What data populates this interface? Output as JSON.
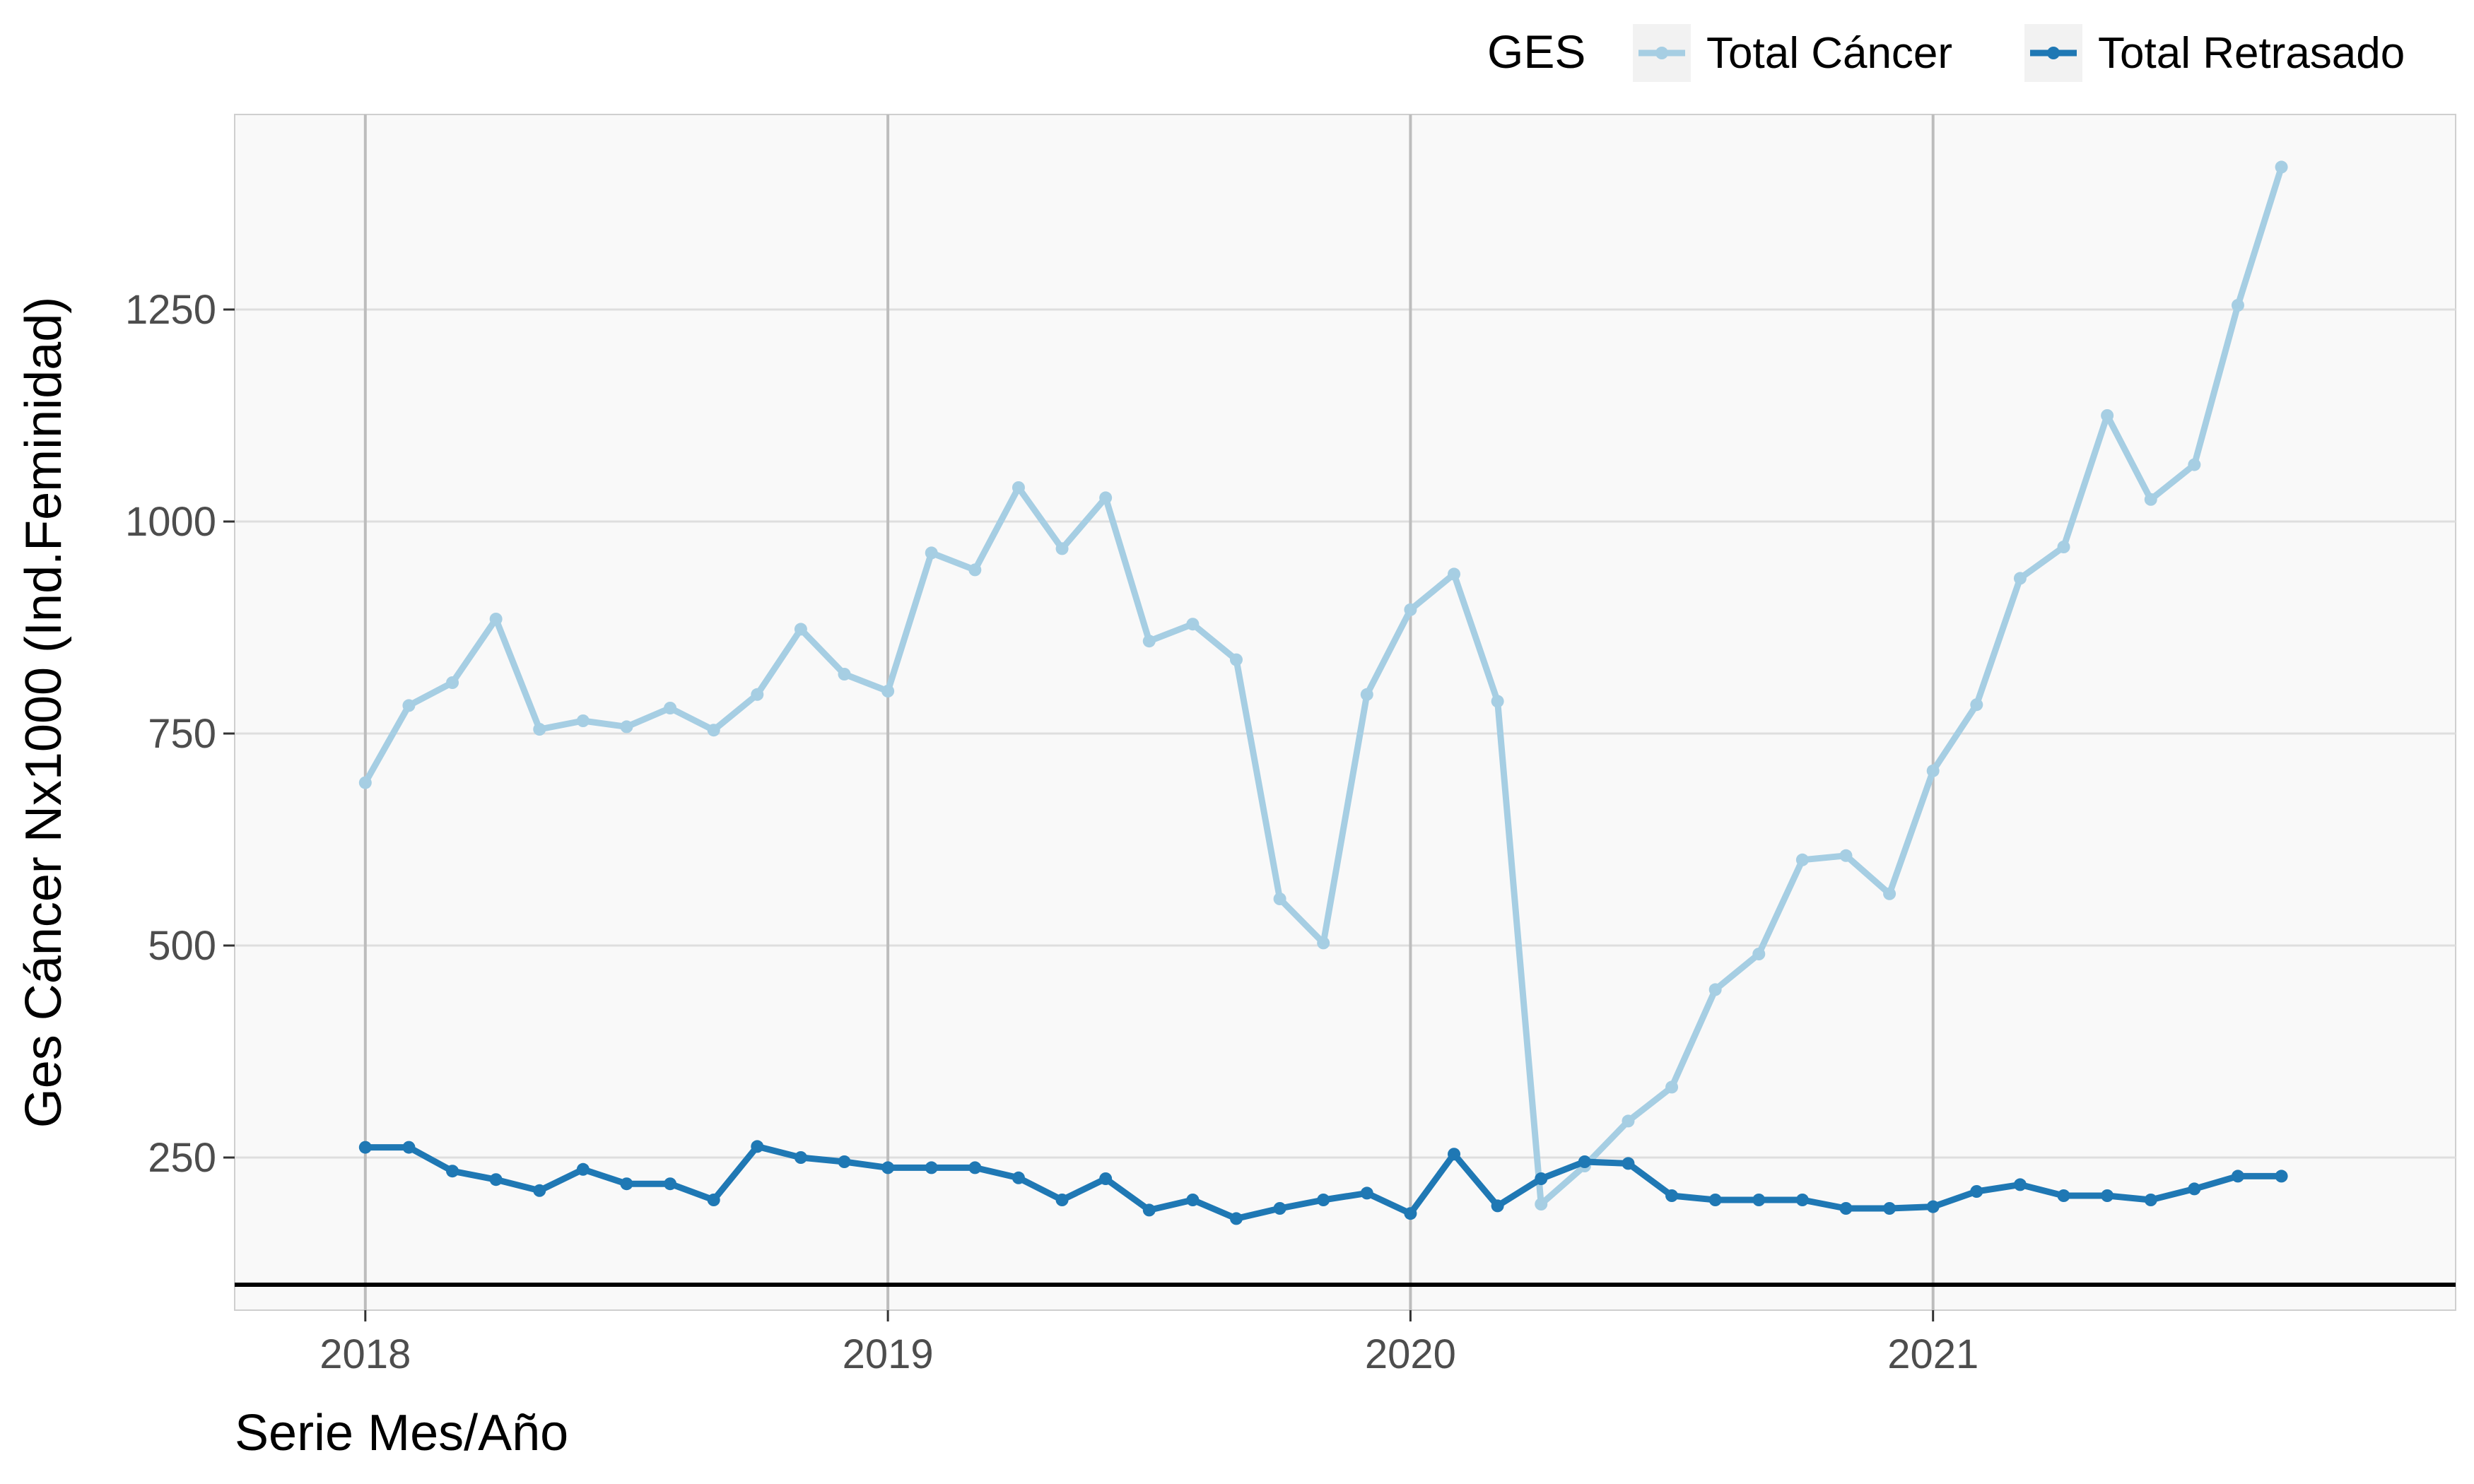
{
  "chart_data": {
    "type": "line",
    "xlabel": "Serie Mes/Año",
    "ylabel": "Ges Cáncer Nx1000 (Ind.Feminidad)",
    "x_ticks": [
      "2018",
      "2019",
      "2020",
      "2021"
    ],
    "y_ticks": [
      250,
      500,
      750,
      1000,
      1250
    ],
    "xlim": [
      "2017-10",
      "2022-01"
    ],
    "ylim": [
      70,
      1480
    ],
    "reference_line": 100,
    "grid": true,
    "legend": {
      "title": "GES",
      "position": "top-right"
    },
    "x": [
      "2018-01",
      "2018-02",
      "2018-03",
      "2018-04",
      "2018-05",
      "2018-06",
      "2018-07",
      "2018-08",
      "2018-09",
      "2018-10",
      "2018-11",
      "2018-12",
      "2019-01",
      "2019-02",
      "2019-03",
      "2019-04",
      "2019-05",
      "2019-06",
      "2019-07",
      "2019-08",
      "2019-09",
      "2019-10",
      "2019-11",
      "2019-12",
      "2020-01",
      "2020-02",
      "2020-03",
      "2020-04",
      "2020-05",
      "2020-06",
      "2020-07",
      "2020-08",
      "2020-09",
      "2020-10",
      "2020-11",
      "2020-12",
      "2021-01",
      "2021-02",
      "2021-03",
      "2021-04",
      "2021-05",
      "2021-06",
      "2021-07",
      "2021-08",
      "2021-09"
    ],
    "series": [
      {
        "name": "Total Cáncer",
        "color": "#a6cee3",
        "values": [
          692,
          783,
          810,
          885,
          755,
          765,
          758,
          780,
          754,
          796,
          873,
          820,
          800,
          963,
          943,
          1040,
          968,
          1028,
          859,
          879,
          837,
          555,
          503,
          796,
          896,
          938,
          788,
          195,
          240,
          293,
          333,
          448,
          490,
          601,
          606,
          561,
          706,
          784,
          933,
          970,
          1125,
          1026,
          1067,
          1255,
          1418
        ]
      },
      {
        "name": "Total Retrasado",
        "color": "#1f78b4",
        "values": [
          262,
          262,
          234,
          224,
          211,
          236,
          219,
          219,
          200,
          263,
          250,
          245,
          238,
          238,
          238,
          226,
          200,
          225,
          188,
          200,
          178,
          190,
          200,
          208,
          184,
          254,
          193,
          225,
          245,
          243,
          205,
          200,
          200,
          200,
          190,
          190,
          192,
          210,
          218,
          205,
          205,
          200,
          213,
          228,
          228
        ]
      }
    ]
  }
}
